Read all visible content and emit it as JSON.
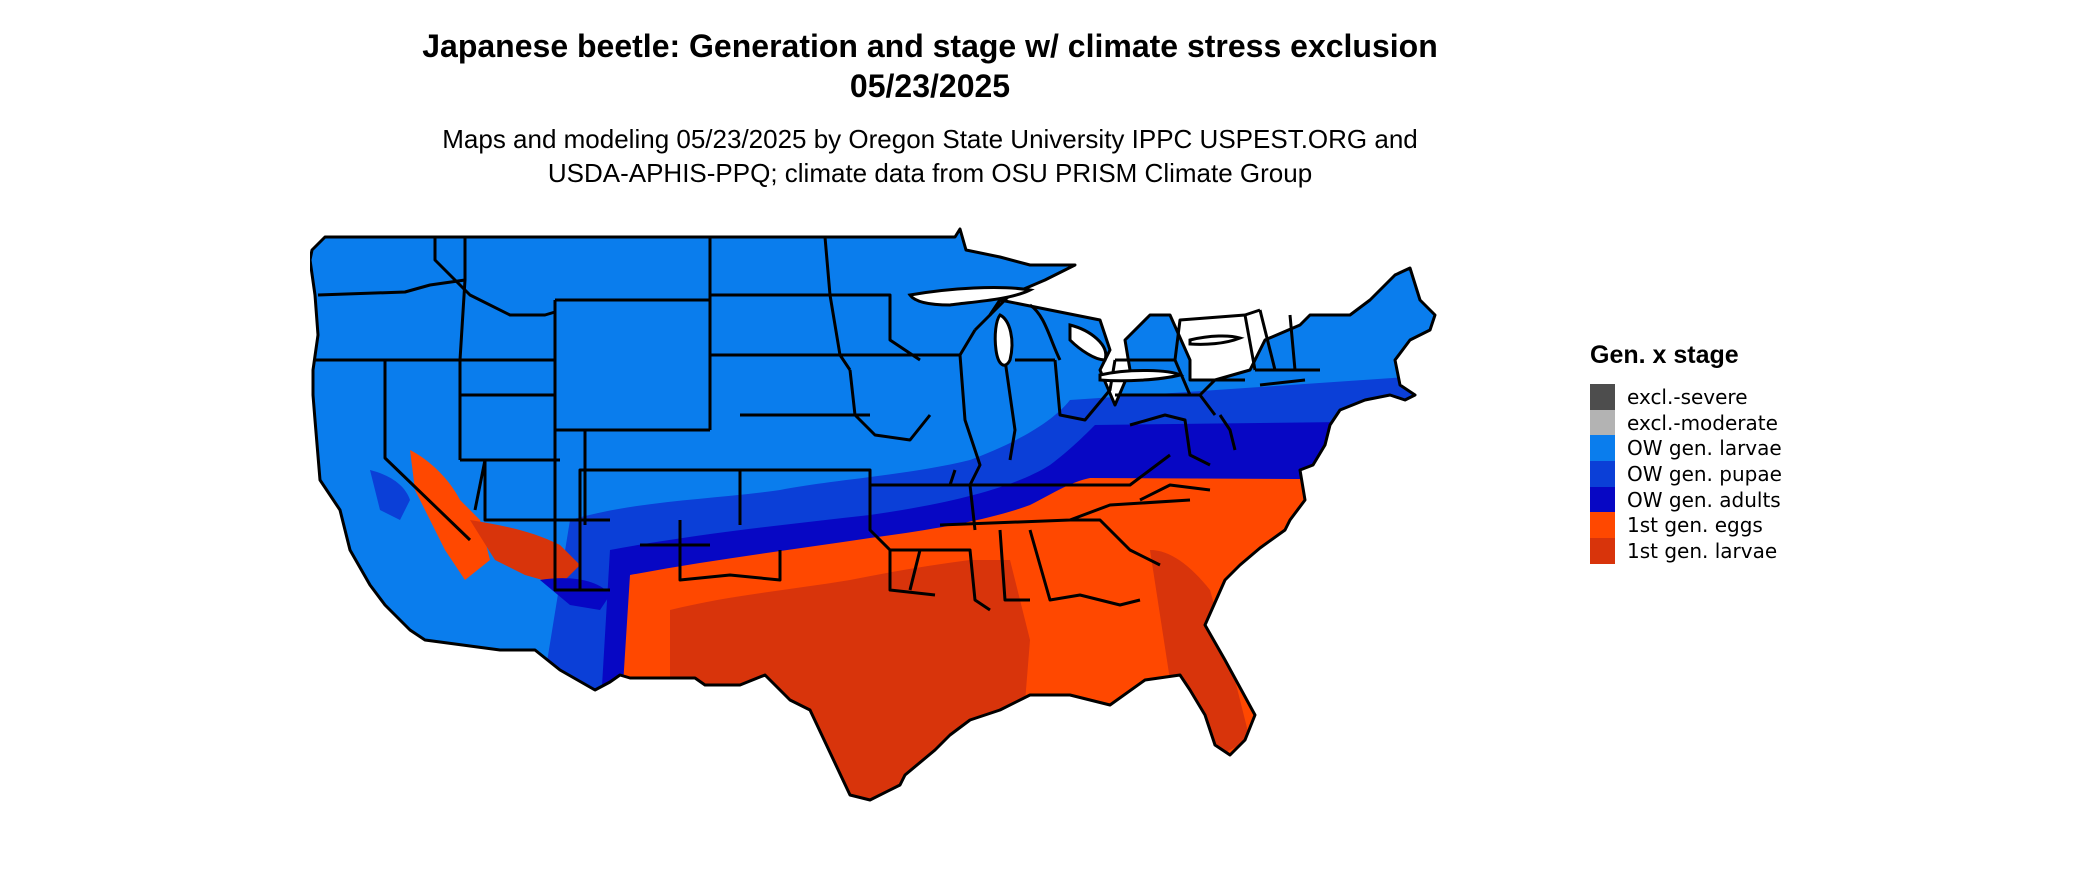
{
  "title": {
    "line1": "Japanese beetle: Generation and stage w/ climate stress exclusion",
    "line2": "05/23/2025"
  },
  "subtitle": {
    "line1": "Maps and modeling 05/23/2025 by Oregon State University IPPC USPEST.ORG and",
    "line2": "USDA-APHIS-PPQ; climate data from OSU PRISM Climate Group"
  },
  "legend": {
    "title": "Gen. x stage",
    "items": [
      {
        "label": "excl.-severe",
        "color": "#4d4d4d"
      },
      {
        "label": "excl.-moderate",
        "color": "#b3b3b3"
      },
      {
        "label": "OW gen. larvae",
        "color": "#0a7ded"
      },
      {
        "label": "OW gen. pupae",
        "color": "#0b3fd7"
      },
      {
        "label": "OW gen. adults",
        "color": "#0707c4"
      },
      {
        "label": "1st gen. eggs",
        "color": "#ff4800"
      },
      {
        "label": "1st gen. larvae",
        "color": "#d8340b"
      }
    ]
  },
  "map": {
    "region": "contiguous United States",
    "boundary_color": "#000000"
  }
}
